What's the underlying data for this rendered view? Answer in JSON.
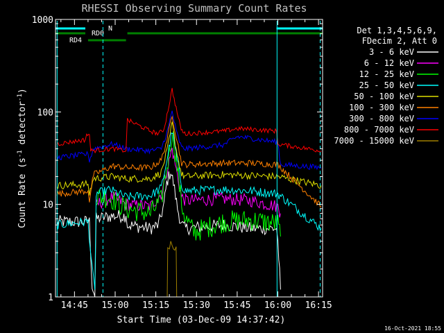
{
  "chart_data": {
    "type": "line",
    "title": "RHESSI Observing Summary Count Rates",
    "xlabel": "Start Time (03-Dec-09 14:37:42)",
    "ylabel_main": "Count Rate (s",
    "ylabel_sup1": "-1",
    "ylabel_mid": " detector",
    "ylabel_sup2": "-1",
    "ylabel_end": ")",
    "x_unit": "minutes of day",
    "xlim": [
      878,
      976.5
    ],
    "ylim": [
      1,
      1000
    ],
    "y_scale": "log",
    "x_ticks": [
      {
        "value": 885,
        "label": "14:45"
      },
      {
        "value": 900,
        "label": "15:00"
      },
      {
        "value": 915,
        "label": "15:15"
      },
      {
        "value": 930,
        "label": "15:30"
      },
      {
        "value": 945,
        "label": "15:45"
      },
      {
        "value": 960,
        "label": "16:00"
      },
      {
        "value": 975,
        "label": "16:15"
      }
    ],
    "y_ticks": [
      {
        "value": 1,
        "label": "1"
      },
      {
        "value": 10,
        "label": "10"
      },
      {
        "value": 100,
        "label": "100"
      },
      {
        "value": 1000,
        "label": "1000"
      }
    ],
    "legend_header": [
      "Det 1,3,4,5,6,9,",
      "FDecim 2, Att 0"
    ],
    "footer_date": "16-Oct-2021 18:55",
    "series": [
      {
        "name": "3 - 6 keV",
        "color": "#ffffff",
        "x": [
          878.5,
          890.5,
          891.5,
          892.5,
          893,
          899,
          904,
          904.5,
          913,
          916,
          918,
          919,
          920.5,
          921.5,
          923,
          924.5,
          926,
          940,
          950,
          959.5,
          960,
          961
        ],
        "y": [
          6.5,
          6.5,
          1.3,
          1.0,
          7.0,
          7.5,
          7.5,
          6.0,
          5.5,
          6.0,
          10,
          17,
          23,
          17,
          9,
          6.0,
          5.5,
          6.0,
          5.5,
          5.5,
          4.0,
          1.2
        ]
      },
      {
        "name": "6 - 12 keV",
        "color": "#ff00ff",
        "x": [
          893,
          899,
          904,
          913,
          917,
          919.5,
          921,
          922.5,
          924.5,
          926,
          940,
          950,
          960,
          961
        ],
        "y": [
          10,
          12,
          10,
          9.5,
          13,
          26,
          40,
          24,
          12,
          11,
          11.5,
          11,
          9.5,
          8
        ]
      },
      {
        "name": "12 - 25 keV",
        "color": "#00ff00",
        "x": [
          893,
          898,
          904,
          913,
          917,
          919.5,
          921,
          922.5,
          924.5,
          926,
          929,
          940,
          950,
          960,
          961
        ],
        "y": [
          12,
          12,
          9.0,
          8.0,
          11,
          30,
          60,
          32,
          10,
          7,
          5.0,
          6.5,
          6.8,
          6.2,
          4.5
        ]
      },
      {
        "name": "25 - 50 keV",
        "color": "#00ffff",
        "x": [
          878.5,
          890,
          891.5,
          892.5,
          893,
          898,
          904,
          913,
          917,
          919.5,
          921,
          922.5,
          924.5,
          926,
          940,
          950,
          960,
          976
        ],
        "y": [
          6.0,
          6.5,
          2.0,
          1.2,
          13,
          14.5,
          12,
          12.5,
          15,
          35,
          62,
          35,
          16,
          14,
          14.5,
          14,
          13,
          5.5
        ]
      },
      {
        "name": "50 - 100 keV",
        "color": "#e0e000",
        "x": [
          878.5,
          890,
          890.5,
          892,
          899,
          904,
          913,
          917,
          919.5,
          921,
          922.5,
          924.5,
          926,
          940,
          950,
          960,
          976
        ],
        "y": [
          16,
          16.5,
          13,
          19,
          20,
          19,
          19,
          22,
          42,
          75,
          40,
          21,
          20,
          21,
          20.5,
          20,
          16
        ]
      },
      {
        "name": "100 - 300 keV",
        "color": "#ff8000",
        "x": [
          878.5,
          890,
          890.5,
          892,
          899,
          904,
          913,
          917,
          919.5,
          921,
          922.5,
          924.5,
          926,
          940,
          950,
          960,
          976
        ],
        "y": [
          13,
          14,
          11,
          21,
          26,
          25,
          25,
          30,
          55,
          95,
          55,
          28,
          27,
          28,
          28,
          27,
          9.5
        ]
      },
      {
        "name": "300 - 800 keV",
        "color": "#0000ff",
        "x": [
          878.5,
          890,
          890.5,
          892,
          899,
          904,
          913,
          917,
          919.5,
          921,
          922.5,
          924.5,
          926,
          940,
          945,
          950,
          960,
          961,
          976
        ],
        "y": [
          32,
          35,
          30,
          40,
          45,
          40,
          38,
          40,
          65,
          103,
          62,
          41,
          40,
          44,
          54,
          52,
          47,
          27,
          25
        ]
      },
      {
        "name": "800 - 7000 keV",
        "color": "#ff0000",
        "x": [
          878.5,
          889,
          889.5,
          890.5,
          891,
          899,
          904,
          904.5,
          913,
          916,
          918,
          919.5,
          921,
          922.5,
          924,
          925,
          926,
          940,
          945,
          950,
          959.5,
          960,
          976
        ],
        "y": [
          45,
          50,
          57,
          57,
          38,
          40,
          38,
          82,
          62,
          58,
          65,
          105,
          175,
          110,
          70,
          60,
          58,
          62,
          66,
          65,
          62,
          45,
          38
        ]
      },
      {
        "name": "7000 - 15000 keV",
        "color": "#a08000",
        "x": [
          919.2,
          919.4,
          920.0,
          920.5,
          921.0,
          921.5,
          922.0,
          922.5,
          922.7
        ],
        "y": [
          1.0,
          3.4,
          3.3,
          4.0,
          3.6,
          3.3,
          3.2,
          3.5,
          1.0
        ]
      }
    ],
    "annotations": [
      {
        "label": "N",
        "color": "#00ffff"
      },
      {
        "label": "RD0",
        "color": "#00c000"
      },
      {
        "label": "RD4",
        "color": "#00c000"
      }
    ],
    "colors": {
      "background": "#000000",
      "axes": "#ffffff",
      "night": "#00ffff",
      "decimation": "#008000",
      "title": "#c0c0c0"
    }
  }
}
